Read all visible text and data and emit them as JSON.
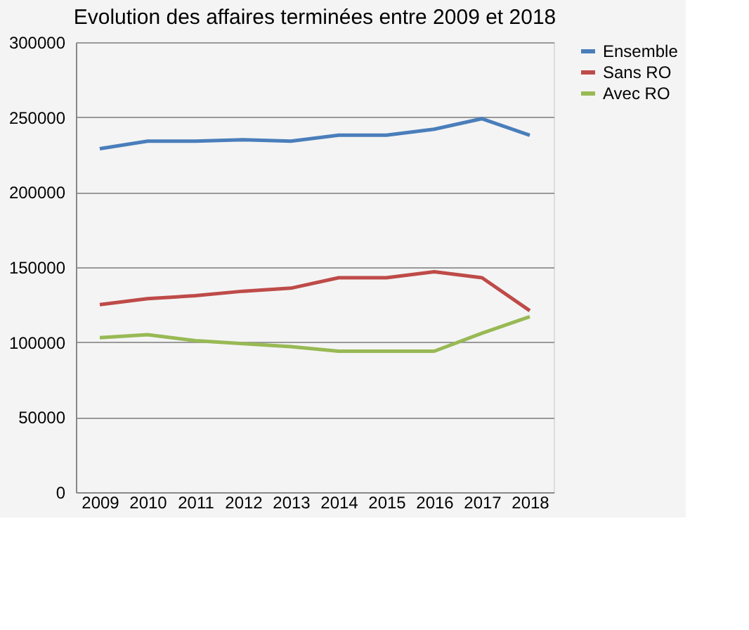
{
  "chart_data": {
    "type": "line",
    "title": "Evolution des affaires terminées entre 2009 et 2018",
    "categories": [
      "2009",
      "2010",
      "2011",
      "2012",
      "2013",
      "2014",
      "2015",
      "2016",
      "2017",
      "2018"
    ],
    "series": [
      {
        "name": "Ensemble",
        "color": "#4a7ebb",
        "values": [
          229000,
          234000,
          234000,
          235000,
          234000,
          238000,
          238000,
          242000,
          249000,
          238000
        ]
      },
      {
        "name": "Sans RO",
        "color": "#be4b48",
        "values": [
          125000,
          129000,
          131000,
          134000,
          136000,
          143000,
          143000,
          147000,
          143000,
          121000
        ]
      },
      {
        "name": "Avec RO",
        "color": "#98b954",
        "values": [
          103000,
          105000,
          101000,
          99000,
          97000,
          94000,
          94000,
          94000,
          106000,
          117000
        ]
      }
    ],
    "ylim": [
      0,
      300000
    ],
    "yticks": [
      0,
      50000,
      100000,
      150000,
      200000,
      250000,
      300000
    ],
    "grid": "y",
    "legend": "right",
    "marker": "none",
    "line_style": "solid"
  }
}
